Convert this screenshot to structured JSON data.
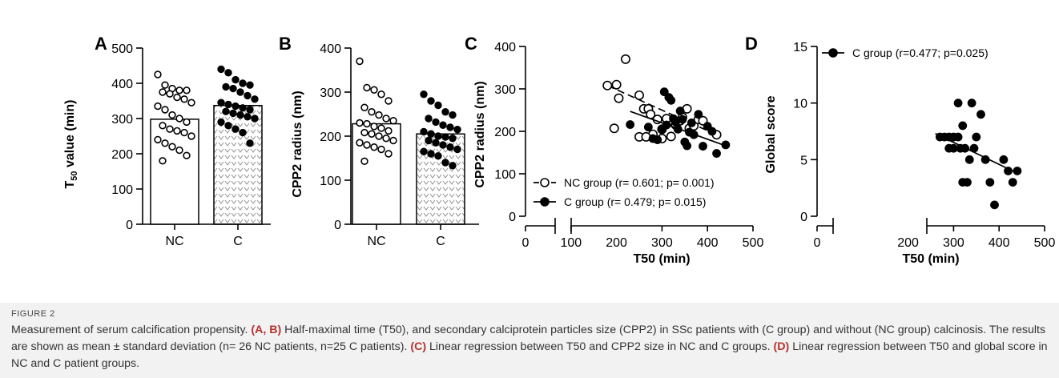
{
  "figure_label": "FIGURE 2",
  "caption": {
    "part1": "Measurement of serum calcification propensity. ",
    "ref_ab": "(A, B)",
    "part2": " Half-maximal time (T50), and secondary calciprotein particles size (CPP2) in SSc patients with (C group) and without (NC group) calcinosis. The results are shown as mean ± standard deviation (n= 26 NC patients, n=25 C patients). ",
    "ref_c": "(C)",
    "part3": " Linear regression between T50 and CPP2 size in NC and C groups. ",
    "ref_d": "(D)",
    "part4": " Linear regression between T50 and global score in NC and C patient groups."
  },
  "colors": {
    "ink": "#000000",
    "c_bar_pattern": "#888888",
    "caption_bg": "#f2f2f2",
    "caption_ref": "#b5322d"
  },
  "chart_data": [
    {
      "panel": "A",
      "type": "bar",
      "ylabel_prefix": "T",
      "ylabel_sub": "50",
      "ylabel_suffix": " value (min)",
      "ylim": [
        0,
        500
      ],
      "yticks": [
        "0",
        "100",
        "200",
        "300",
        "400",
        "500"
      ],
      "categories": [
        "NC",
        "C"
      ],
      "values": [
        298,
        337
      ],
      "points": {
        "NC": [
          425,
          395,
          385,
          380,
          380,
          375,
          370,
          360,
          355,
          345,
          335,
          325,
          310,
          300,
          290,
          280,
          270,
          265,
          260,
          250,
          240,
          230,
          220,
          210,
          195,
          180
        ],
        "C": [
          440,
          430,
          410,
          400,
          395,
          390,
          385,
          375,
          365,
          355,
          345,
          340,
          335,
          330,
          325,
          320,
          315,
          310,
          305,
          300,
          290,
          280,
          270,
          260,
          230
        ]
      }
    },
    {
      "panel": "B",
      "type": "bar",
      "ylabel": "CPP2 radius (nm)",
      "ylim": [
        0,
        400
      ],
      "yticks": [
        "0",
        "100",
        "200",
        "300",
        "400"
      ],
      "categories": [
        "NC",
        "C"
      ],
      "values": [
        228,
        205
      ],
      "points": {
        "NC": [
          370,
          310,
          305,
          295,
          280,
          265,
          255,
          248,
          240,
          235,
          230,
          228,
          222,
          218,
          212,
          208,
          205,
          200,
          195,
          190,
          185,
          180,
          175,
          170,
          160,
          143
        ],
        "C": [
          295,
          280,
          270,
          255,
          248,
          240,
          232,
          225,
          220,
          215,
          210,
          205,
          200,
          198,
          195,
          190,
          185,
          180,
          175,
          170,
          165,
          160,
          155,
          140,
          133
        ]
      }
    },
    {
      "panel": "C",
      "type": "scatter",
      "xlabel": "T50 (min)",
      "ylabel": "CPP2 radius (nm)",
      "ylim": [
        0,
        400
      ],
      "yticks": [
        "0",
        "100",
        "200",
        "300",
        "400"
      ],
      "xticks_left": [
        "0",
        "100"
      ],
      "xticks_right": [
        "200",
        "300",
        "400",
        "500"
      ],
      "series": [
        {
          "name": "NC group (r= 0.601; p= 0.001)",
          "x": [
            180,
            200,
            205,
            195,
            220,
            250,
            260,
            270,
            275,
            280,
            250,
            265,
            290,
            300,
            310,
            320,
            330,
            340,
            345,
            355,
            360,
            370,
            380,
            390,
            420,
            300
          ],
          "y": [
            308,
            310,
            278,
            207,
            370,
            285,
            253,
            253,
            240,
            193,
            187,
            187,
            228,
            183,
            230,
            188,
            215,
            225,
            233,
            253,
            207,
            213,
            228,
            225,
            192,
            205
          ],
          "fit": [
            [
              180,
              308
            ],
            [
              420,
              192
            ]
          ]
        },
        {
          "name": "C group (r= 0.479; p= 0.015)",
          "x": [
            230,
            270,
            280,
            290,
            300,
            305,
            310,
            315,
            320,
            325,
            330,
            335,
            340,
            345,
            350,
            355,
            360,
            365,
            370,
            380,
            390,
            400,
            410,
            420,
            440
          ],
          "y": [
            216,
            210,
            183,
            180,
            205,
            293,
            215,
            280,
            273,
            230,
            222,
            205,
            248,
            228,
            175,
            166,
            198,
            220,
            192,
            240,
            165,
            212,
            200,
            148,
            168
          ],
          "fit": [
            [
              230,
              247
            ],
            [
              440,
              166
            ]
          ]
        }
      ]
    },
    {
      "panel": "D",
      "type": "scatter",
      "xlabel": "T50 (min)",
      "ylabel": "Global score",
      "ylim": [
        0,
        15
      ],
      "yticks": [
        "0",
        "5",
        "10",
        "15"
      ],
      "xticks_left": [
        "0"
      ],
      "xticks_right": [
        "200",
        "300",
        "400",
        "500"
      ],
      "series": [
        {
          "name": "C group (r=0.477; p=0.025)",
          "x": [
            270,
            280,
            290,
            290,
            300,
            300,
            310,
            310,
            320,
            320,
            325,
            330,
            335,
            340,
            345,
            350,
            360,
            370,
            380,
            390,
            410,
            420,
            430,
            440,
            315
          ],
          "y": [
            7,
            7,
            6,
            7,
            6,
            7,
            10,
            7,
            8,
            3,
            6,
            3,
            5,
            10,
            6,
            7,
            9,
            5,
            3,
            1,
            5,
            4,
            3,
            4,
            6
          ],
          "fit": [
            [
              260,
              7.3
            ],
            [
              440,
              3.8
            ]
          ]
        }
      ]
    }
  ]
}
